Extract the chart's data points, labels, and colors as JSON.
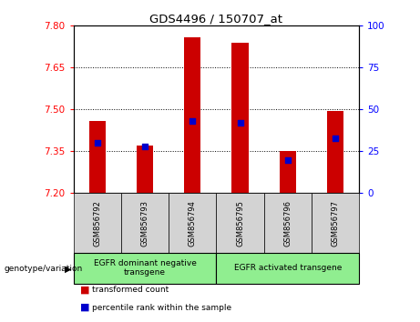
{
  "title": "GDS4496 / 150707_at",
  "samples": [
    "GSM856792",
    "GSM856793",
    "GSM856794",
    "GSM856795",
    "GSM856796",
    "GSM856797"
  ],
  "bar_bottoms": [
    7.2,
    7.2,
    7.2,
    7.2,
    7.2,
    7.2
  ],
  "bar_tops": [
    7.46,
    7.37,
    7.76,
    7.74,
    7.35,
    7.495
  ],
  "percentile_ranks": [
    30,
    28,
    43,
    42,
    20,
    33
  ],
  "ylim": [
    7.2,
    7.8
  ],
  "yticks_left": [
    7.2,
    7.35,
    7.5,
    7.65,
    7.8
  ],
  "yticks_right": [
    0,
    25,
    50,
    75,
    100
  ],
  "bar_color": "#cc0000",
  "dot_color": "#0000cc",
  "group1_label": "EGFR dominant negative\ntransgene",
  "group2_label": "EGFR activated transgene",
  "group1_indices": [
    0,
    1,
    2
  ],
  "group2_indices": [
    3,
    4,
    5
  ],
  "legend_bar_label": "transformed count",
  "legend_dot_label": "percentile rank within the sample",
  "genotype_label": "genotype/variation",
  "group_bg_color": "#90ee90",
  "sample_bg_color": "#d3d3d3",
  "dotted_line_color": "#000000",
  "background_color": "#ffffff",
  "bar_width": 0.35
}
